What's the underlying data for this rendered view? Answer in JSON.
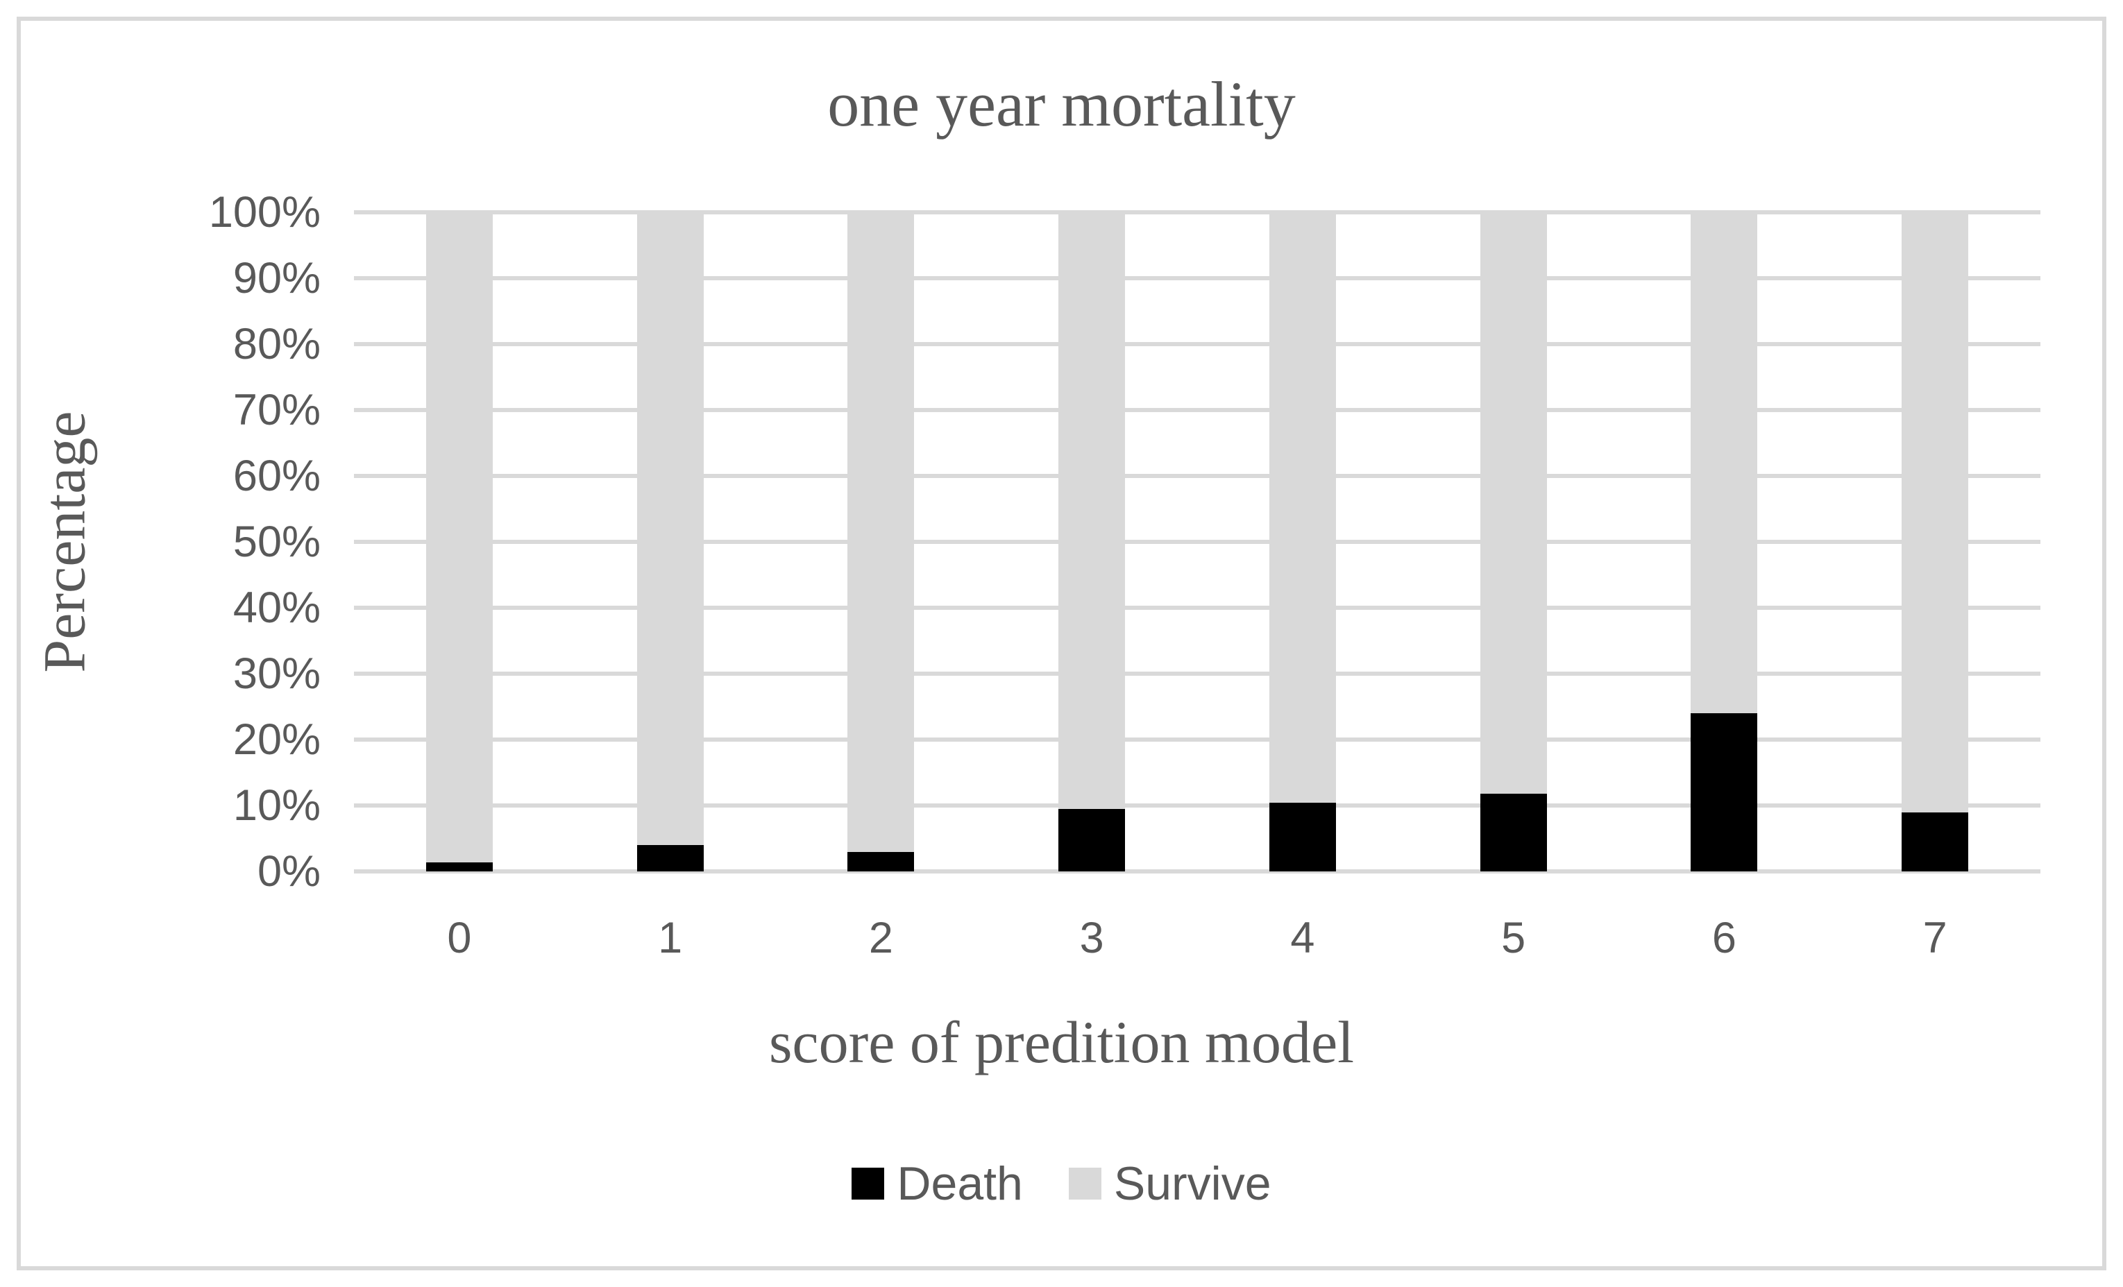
{
  "chart_data": {
    "type": "bar",
    "stacked": true,
    "orientation": "vertical",
    "title": "one year mortality",
    "xlabel": "score of predition model",
    "ylabel": "Percentage",
    "categories": [
      "0",
      "1",
      "2",
      "3",
      "4",
      "5",
      "6",
      "7"
    ],
    "series": [
      {
        "name": "Death",
        "color": "#000000",
        "values": [
          1.4,
          4.0,
          2.9,
          9.5,
          10.4,
          11.8,
          24.0,
          9.0
        ]
      },
      {
        "name": "Survive",
        "color": "#d9d9d9",
        "values": [
          98.6,
          96.0,
          97.1,
          90.5,
          89.6,
          88.2,
          76.0,
          91.0
        ]
      }
    ],
    "y_ticks": [
      "100%",
      "90%",
      "80%",
      "70%",
      "60%",
      "50%",
      "40%",
      "30%",
      "20%",
      "10%",
      "0%"
    ],
    "ylim": [
      0,
      100
    ],
    "grid": true,
    "gridline_color": "#d9d9d9",
    "legend_position": "bottom"
  },
  "style": {
    "text_color": "#595959",
    "frame_border_color": "#d9d9d9",
    "background": "#ffffff"
  }
}
